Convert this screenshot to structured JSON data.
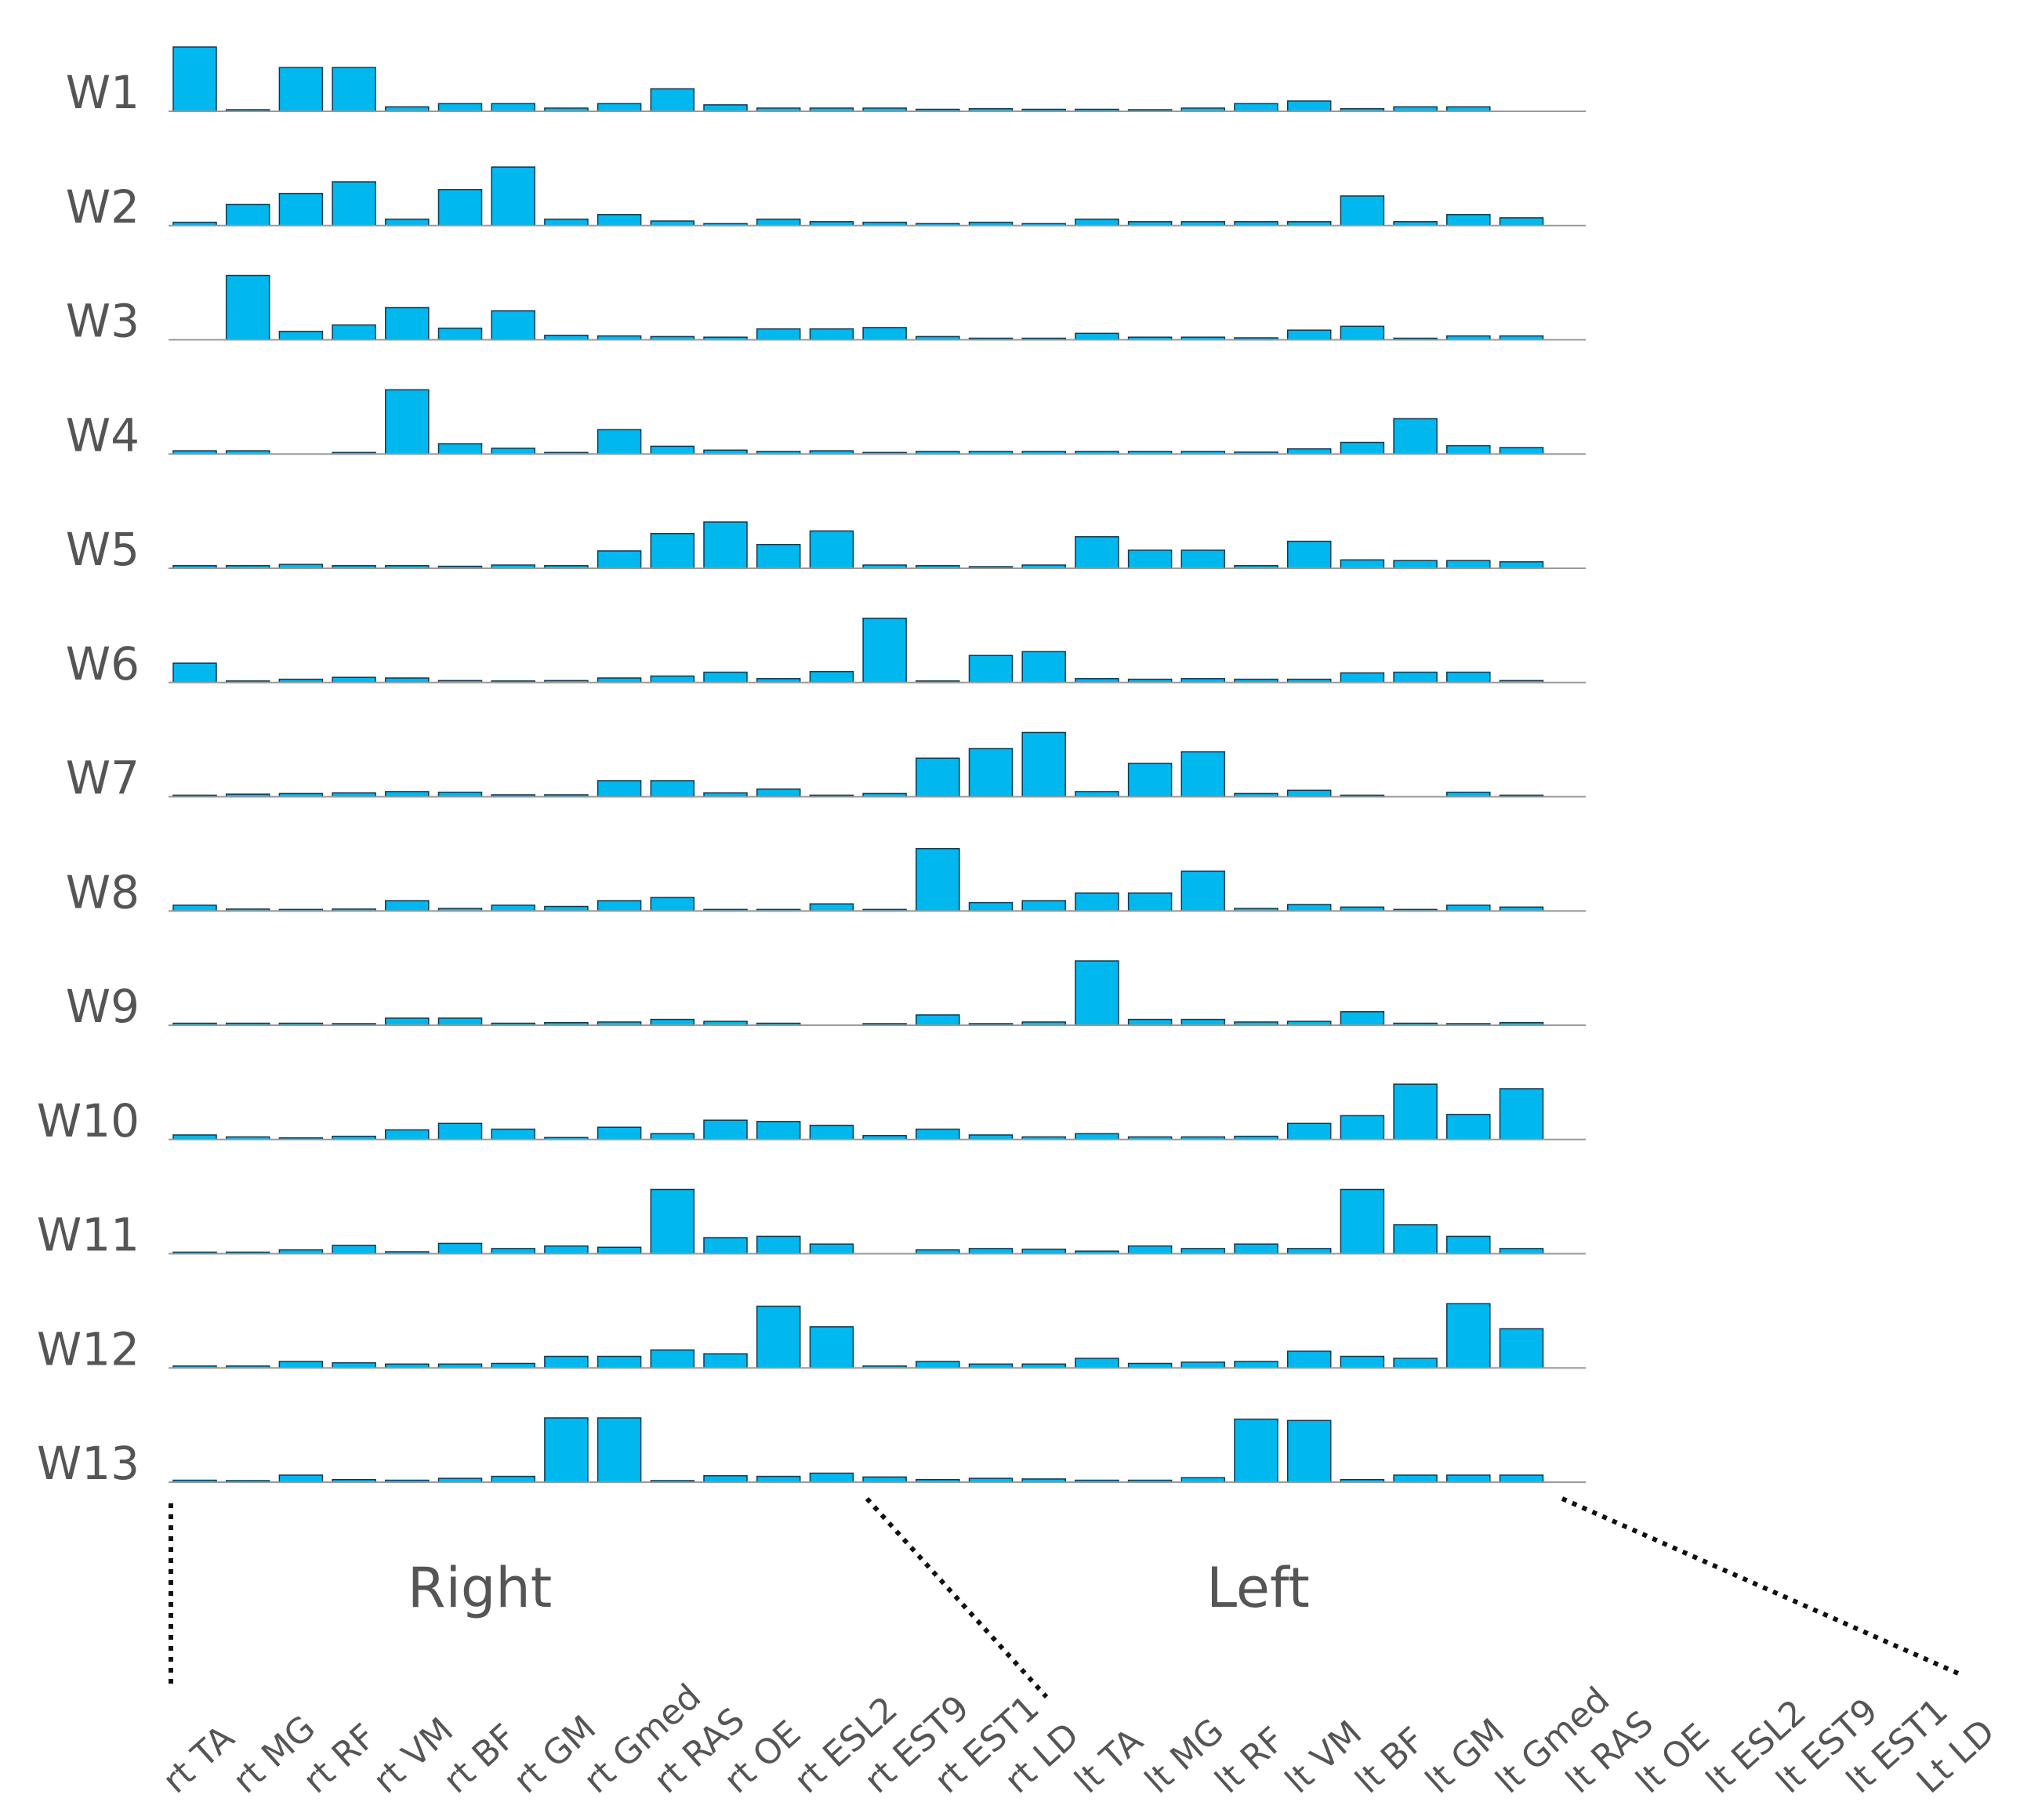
{
  "chart_data": {
    "type": "bar",
    "layout": "small-multiples",
    "rows": [
      "W1",
      "W2",
      "W3",
      "W4",
      "W5",
      "W6",
      "W7",
      "W8",
      "W9",
      "W10",
      "W11",
      "W12",
      "W13"
    ],
    "categories": [
      "rt TA",
      "rt MG",
      "rt RF",
      "rt VM",
      "rt BF",
      "rt GM",
      "rt Gmed",
      "rt RAS",
      "rt OE",
      "rt ESL2",
      "rt EST9",
      "rt EST1",
      "rt LD",
      "lt TA",
      "lt MG",
      "lt RF",
      "lt VM",
      "lt BF",
      "lt GM",
      "lt Gmed",
      "lt RAS",
      "lt OE",
      "lt ESL2",
      "lt EST9",
      "lt EST1",
      "Lt LD"
    ],
    "groups": [
      {
        "label": "Right"
      },
      {
        "label": "Left"
      }
    ],
    "bar_color": "#00B8EE",
    "ylim": [
      0,
      1
    ],
    "series": [
      {
        "name": "W1",
        "values": [
          1.0,
          0.02,
          0.68,
          0.68,
          0.07,
          0.12,
          0.12,
          0.05,
          0.12,
          0.35,
          0.1,
          0.05,
          0.05,
          0.05,
          0.03,
          0.04,
          0.03,
          0.03,
          0.02,
          0.05,
          0.12,
          0.16,
          0.04,
          0.07,
          0.07,
          0.0
        ]
      },
      {
        "name": "W2",
        "values": [
          0.05,
          0.33,
          0.5,
          0.68,
          0.1,
          0.56,
          0.91,
          0.1,
          0.17,
          0.07,
          0.03,
          0.1,
          0.06,
          0.05,
          0.03,
          0.05,
          0.03,
          0.1,
          0.06,
          0.06,
          0.06,
          0.06,
          0.46,
          0.06,
          0.17,
          0.12
        ]
      },
      {
        "name": "W3",
        "values": [
          0.0,
          1.0,
          0.13,
          0.23,
          0.5,
          0.18,
          0.45,
          0.07,
          0.06,
          0.05,
          0.04,
          0.17,
          0.17,
          0.19,
          0.05,
          0.02,
          0.02,
          0.1,
          0.04,
          0.04,
          0.03,
          0.15,
          0.21,
          0.02,
          0.06,
          0.06
        ]
      },
      {
        "name": "W4",
        "values": [
          0.05,
          0.05,
          0.0,
          0.01,
          1.0,
          0.16,
          0.09,
          0.01,
          0.38,
          0.12,
          0.06,
          0.04,
          0.05,
          0.01,
          0.04,
          0.04,
          0.04,
          0.04,
          0.04,
          0.04,
          0.03,
          0.08,
          0.18,
          0.55,
          0.13,
          0.1
        ]
      },
      {
        "name": "W5",
        "values": [
          0.04,
          0.04,
          0.06,
          0.04,
          0.04,
          0.03,
          0.05,
          0.04,
          0.27,
          0.54,
          0.72,
          0.37,
          0.58,
          0.05,
          0.04,
          0.01,
          0.05,
          0.49,
          0.28,
          0.28,
          0.04,
          0.42,
          0.13,
          0.12,
          0.12,
          0.1
        ]
      },
      {
        "name": "W6",
        "values": [
          0.3,
          0.01,
          0.05,
          0.08,
          0.07,
          0.03,
          0.01,
          0.03,
          0.07,
          0.1,
          0.16,
          0.06,
          0.17,
          1.0,
          0.01,
          0.42,
          0.48,
          0.06,
          0.05,
          0.06,
          0.05,
          0.05,
          0.15,
          0.16,
          0.16,
          0.03
        ]
      },
      {
        "name": "W7",
        "values": [
          0.01,
          0.04,
          0.05,
          0.06,
          0.08,
          0.07,
          0.03,
          0.03,
          0.25,
          0.25,
          0.06,
          0.12,
          0.01,
          0.05,
          0.6,
          0.75,
          1.0,
          0.08,
          0.52,
          0.7,
          0.05,
          0.1,
          0.01,
          0.0,
          0.07,
          0.01
        ]
      },
      {
        "name": "W8",
        "values": [
          0.09,
          0.03,
          0.02,
          0.03,
          0.16,
          0.04,
          0.09,
          0.07,
          0.16,
          0.21,
          0.02,
          0.02,
          0.11,
          0.01,
          0.97,
          0.13,
          0.16,
          0.28,
          0.28,
          0.62,
          0.04,
          0.1,
          0.06,
          0.02,
          0.09,
          0.06
        ]
      },
      {
        "name": "W9",
        "values": [
          0.03,
          0.03,
          0.03,
          0.01,
          0.11,
          0.11,
          0.03,
          0.04,
          0.05,
          0.09,
          0.06,
          0.03,
          0.0,
          0.01,
          0.16,
          0.02,
          0.05,
          1.0,
          0.09,
          0.09,
          0.05,
          0.06,
          0.21,
          0.03,
          0.02,
          0.04
        ]
      },
      {
        "name": "W10",
        "values": [
          0.07,
          0.04,
          0.01,
          0.05,
          0.15,
          0.25,
          0.16,
          0.03,
          0.19,
          0.09,
          0.3,
          0.28,
          0.22,
          0.06,
          0.16,
          0.07,
          0.04,
          0.09,
          0.04,
          0.04,
          0.05,
          0.25,
          0.37,
          0.86,
          0.39,
          0.79
        ]
      },
      {
        "name": "W11",
        "values": [
          0.01,
          0.01,
          0.06,
          0.13,
          0.03,
          0.16,
          0.08,
          0.12,
          0.1,
          1.0,
          0.25,
          0.27,
          0.15,
          0.0,
          0.06,
          0.08,
          0.07,
          0.04,
          0.12,
          0.08,
          0.15,
          0.08,
          1.0,
          0.45,
          0.27,
          0.08
        ]
      },
      {
        "name": "W12",
        "values": [
          0.03,
          0.03,
          0.1,
          0.08,
          0.06,
          0.06,
          0.07,
          0.18,
          0.18,
          0.28,
          0.22,
          0.96,
          0.64,
          0.03,
          0.1,
          0.06,
          0.06,
          0.15,
          0.07,
          0.09,
          0.1,
          0.26,
          0.18,
          0.15,
          1.0,
          0.61
        ]
      },
      {
        "name": "W13",
        "values": [
          0.03,
          0.02,
          0.11,
          0.04,
          0.03,
          0.06,
          0.09,
          1.0,
          1.0,
          0.01,
          0.1,
          0.09,
          0.14,
          0.08,
          0.04,
          0.06,
          0.05,
          0.03,
          0.03,
          0.07,
          0.98,
          0.96,
          0.04,
          0.11,
          0.11,
          0.11
        ]
      }
    ]
  }
}
